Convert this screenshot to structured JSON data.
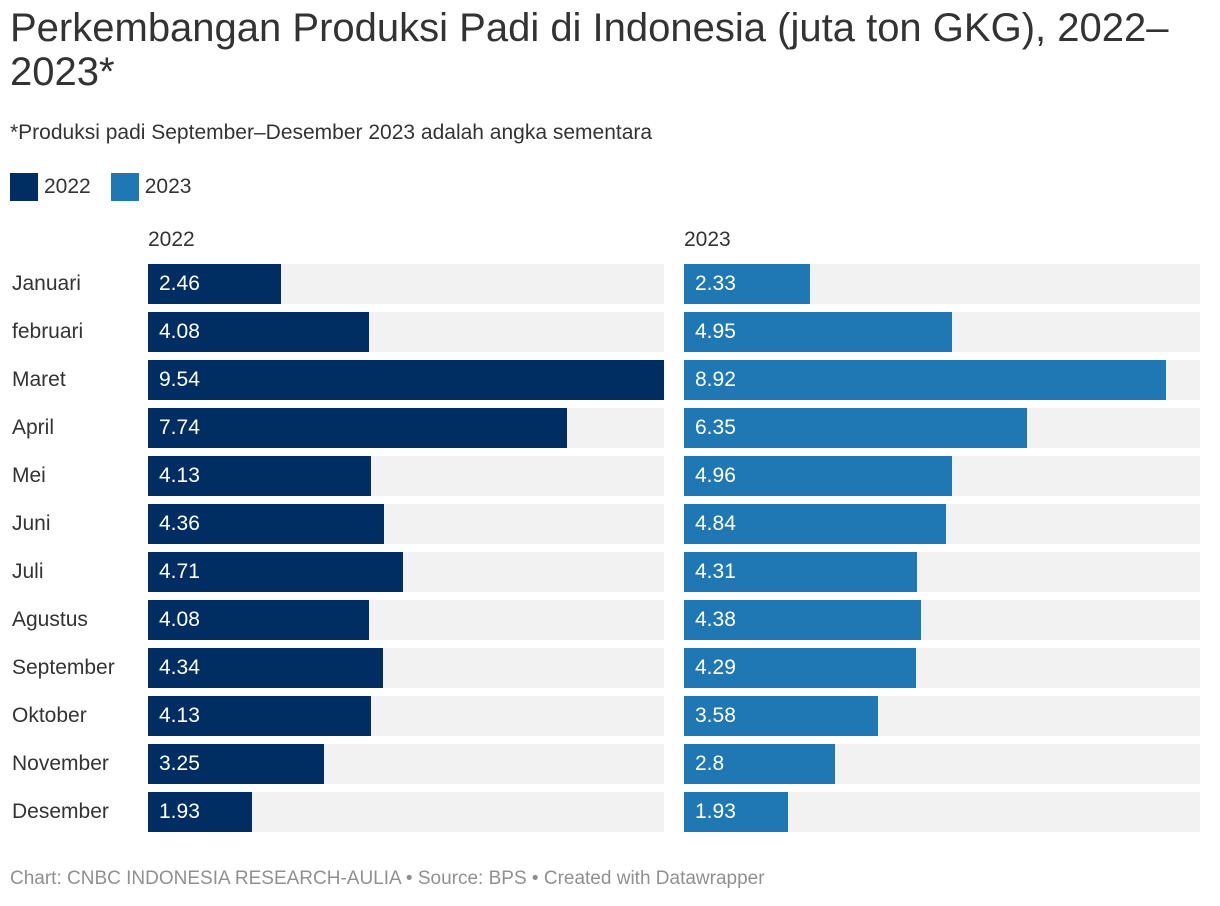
{
  "title": "Perkembangan Produksi Padi di Indonesia (juta ton GKG), 2022–2023*",
  "subtitle": "*Produksi padi September–Desember 2023 adalah angka sementara",
  "legend": [
    {
      "label": "2022",
      "color": "#002e62"
    },
    {
      "label": "2023",
      "color": "#1f78b4"
    }
  ],
  "footer": "Chart: CNBC INDONESIA RESEARCH-AULIA • Source: BPS • Created with Datawrapper",
  "chart_data": {
    "type": "bar",
    "orientation": "horizontal",
    "layout": "small-multiples",
    "categories": [
      "Januari",
      "februari",
      "Maret",
      "April",
      "Mei",
      "Juni",
      "Juli",
      "Agustus",
      "September",
      "Oktober",
      "November",
      "Desember"
    ],
    "xlim": [
      0,
      9.54
    ],
    "series": [
      {
        "name": "2022",
        "color": "#002e62",
        "values": [
          2.46,
          4.08,
          9.54,
          7.74,
          4.13,
          4.36,
          4.71,
          4.08,
          4.34,
          4.13,
          3.25,
          1.93
        ]
      },
      {
        "name": "2023",
        "color": "#1f78b4",
        "values": [
          2.33,
          4.95,
          8.92,
          6.35,
          4.96,
          4.84,
          4.31,
          4.38,
          4.29,
          3.58,
          2.8,
          1.93
        ]
      }
    ],
    "data_labels": true,
    "grid": false,
    "legend_position": "top-left"
  }
}
